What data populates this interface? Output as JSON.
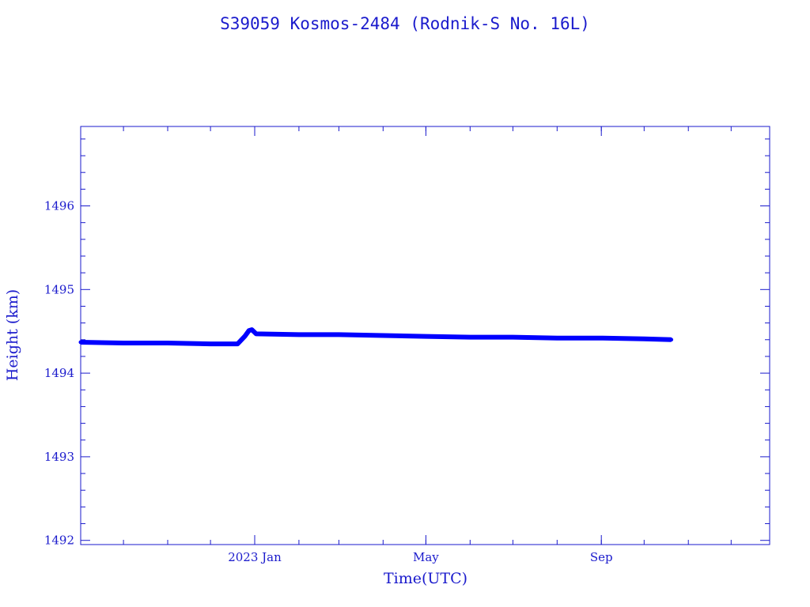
{
  "chart_data": {
    "type": "line",
    "title": "S39059 Kosmos-2484  (Rodnik-S No. 16L)",
    "xlabel": "Time(UTC)",
    "ylabel": "Height (km)",
    "x_tick_labels": [
      "2023 Jan",
      "May",
      "Sep"
    ],
    "x_ticks": [
      "2023-01-01",
      "2023-05-01",
      "2023-09-01"
    ],
    "xlim": [
      "2022-09-01",
      "2023-12-28"
    ],
    "y_ticks": [
      1492,
      1493,
      1494,
      1495,
      1496
    ],
    "ylim": [
      1491.95,
      1496.95
    ],
    "grid": false,
    "colors": {
      "axis": "#1a1acc",
      "series": "#0000ff"
    },
    "series": [
      {
        "x": [
          "2022-09-01",
          "2022-10-01",
          "2022-11-01",
          "2022-12-01",
          "2022-12-20",
          "2022-12-25",
          "2022-12-28",
          "2022-12-30",
          "2023-01-02",
          "2023-02-01",
          "2023-03-01",
          "2023-04-01",
          "2023-05-01",
          "2023-06-01",
          "2023-07-01",
          "2023-08-01",
          "2023-09-01",
          "2023-10-01",
          "2023-10-20"
        ],
        "y": [
          1494.37,
          1494.36,
          1494.36,
          1494.35,
          1494.35,
          1494.44,
          1494.51,
          1494.52,
          1494.47,
          1494.46,
          1494.46,
          1494.45,
          1494.44,
          1494.43,
          1494.43,
          1494.42,
          1494.42,
          1494.41,
          1494.4
        ]
      }
    ]
  }
}
